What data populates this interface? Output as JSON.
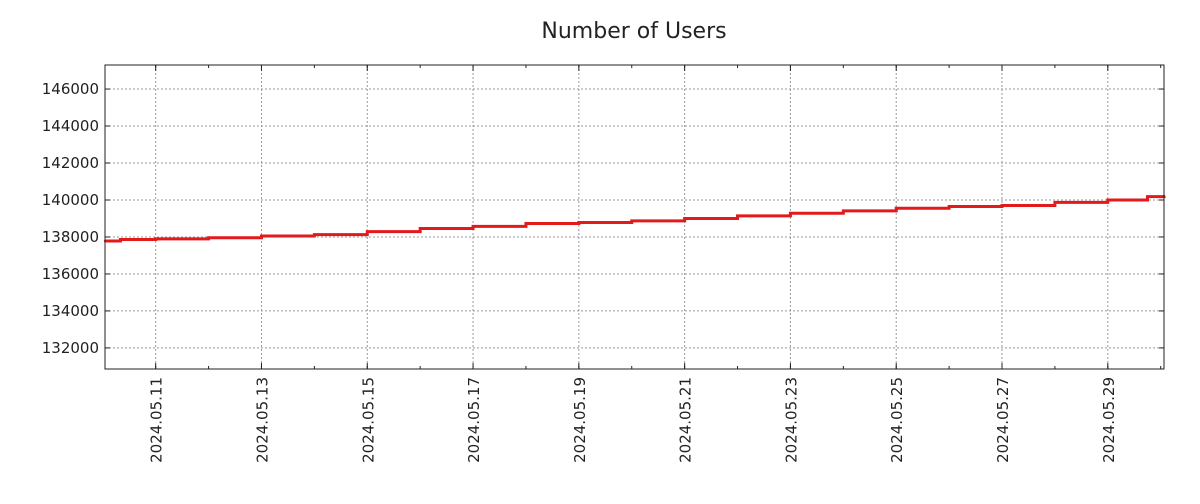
{
  "chart_data": {
    "type": "line",
    "title": "Number of Users",
    "xlabel": "",
    "ylabel": "",
    "xlim": [
      "2024-05-10T01:00",
      "2024-05-30T01:30"
    ],
    "ylim": [
      130860,
      147300
    ],
    "grid": true,
    "yticks": [
      132000,
      134000,
      136000,
      138000,
      140000,
      142000,
      144000,
      146000
    ],
    "xticks": [
      "2024.05.11",
      "2024.05.13",
      "2024.05.15",
      "2024.05.17",
      "2024.05.19",
      "2024.05.21",
      "2024.05.23",
      "2024.05.25",
      "2024.05.27",
      "2024.05.29"
    ],
    "series": [
      {
        "name": "Number of Users",
        "color": "#e31a1c",
        "x": [
          "2024-05-10T01:00",
          "2024-05-10T08:00",
          "2024-05-11T00:00",
          "2024-05-12T00:00",
          "2024-05-13T00:00",
          "2024-05-14T00:00",
          "2024-05-15T00:00",
          "2024-05-16T00:00",
          "2024-05-17T00:00",
          "2024-05-18T00:00",
          "2024-05-19T00:00",
          "2024-05-20T00:00",
          "2024-05-21T00:00",
          "2024-05-22T00:00",
          "2024-05-23T00:00",
          "2024-05-24T00:00",
          "2024-05-25T00:00",
          "2024-05-26T00:00",
          "2024-05-27T00:00",
          "2024-05-28T00:00",
          "2024-05-29T00:00",
          "2024-05-29T18:00",
          "2024-05-30T01:30"
        ],
        "y": [
          137780,
          137860,
          137900,
          137960,
          138050,
          138130,
          138290,
          138460,
          138570,
          138730,
          138780,
          138870,
          139000,
          139140,
          139280,
          139410,
          139550,
          139650,
          139700,
          139870,
          140000,
          140180,
          140220
        ]
      }
    ]
  }
}
